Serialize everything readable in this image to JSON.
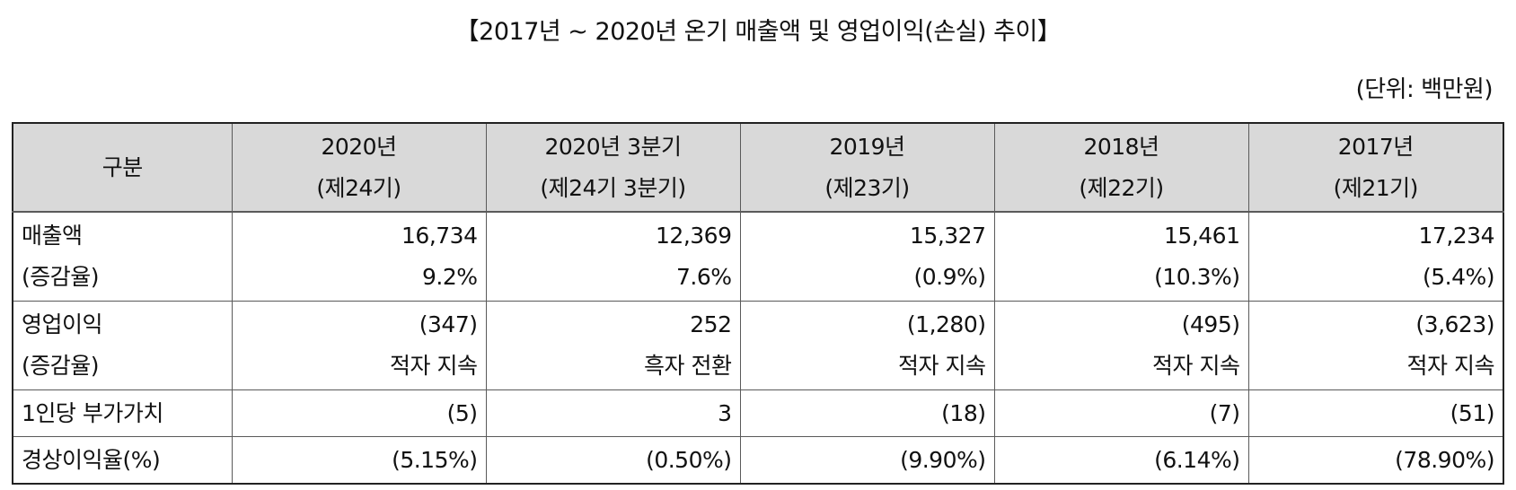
{
  "title": "【2017년 ~ 2020년 온기 매출액 및 영업이익(손실) 추이】",
  "unit": "(단위: 백만원)",
  "table": {
    "corner": "구분",
    "columns": [
      {
        "year": "2020년",
        "period": "(제24기)"
      },
      {
        "year": "2020년 3분기",
        "period": "(제24기 3분기)"
      },
      {
        "year": "2019년",
        "period": "(제23기)"
      },
      {
        "year": "2018년",
        "period": "(제22기)"
      },
      {
        "year": "2017년",
        "period": "(제21기)"
      }
    ],
    "rows": [
      {
        "label": "매출액",
        "sublabel": "(증감율)",
        "values": [
          "16,734",
          "12,369",
          "15,327",
          "15,461",
          "17,234"
        ],
        "subvalues": [
          "9.2%",
          "7.6%",
          "(0.9%)",
          "(10.3%)",
          "(5.4%)"
        ]
      },
      {
        "label": "영업이익",
        "sublabel": "(증감율)",
        "values": [
          "(347)",
          "252",
          "(1,280)",
          "(495)",
          "(3,623)"
        ],
        "subvalues": [
          "적자 지속",
          "흑자 전환",
          "적자 지속",
          "적자 지속",
          "적자 지속"
        ]
      },
      {
        "label": "1인당 부가가치",
        "values": [
          "(5)",
          "3",
          "(18)",
          "(7)",
          "(51)"
        ]
      },
      {
        "label": "경상이익율(%)",
        "values": [
          "(5.15%)",
          "(0.50%)",
          "(9.90%)",
          "(6.14%)",
          "(78.90%)"
        ]
      }
    ]
  }
}
